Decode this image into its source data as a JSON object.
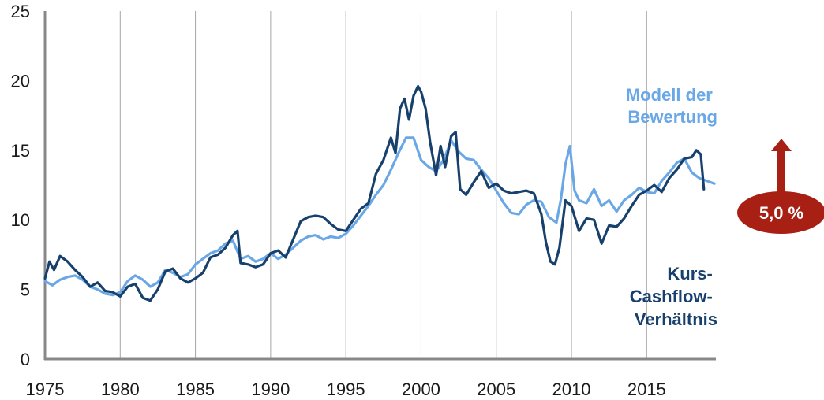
{
  "chart_data": {
    "type": "line",
    "xlim": [
      1975,
      2019.6
    ],
    "ylim": [
      0,
      25
    ],
    "grid": "vertical",
    "x_ticks": [
      {
        "value": 1975,
        "label": "1975"
      },
      {
        "value": 1980,
        "label": "1980"
      },
      {
        "value": 1985,
        "label": "1985"
      },
      {
        "value": 1990,
        "label": "1990"
      },
      {
        "value": 1995,
        "label": "1995"
      },
      {
        "value": 2000,
        "label": "2000"
      },
      {
        "value": 2005,
        "label": "2005"
      },
      {
        "value": 2010,
        "label": "2010"
      },
      {
        "value": 2015,
        "label": "2015"
      }
    ],
    "y_ticks": [
      {
        "value": 0,
        "label": "0"
      },
      {
        "value": 5,
        "label": "5"
      },
      {
        "value": 10,
        "label": "10"
      },
      {
        "value": 15,
        "label": "15"
      },
      {
        "value": 20,
        "label": "20"
      },
      {
        "value": 25,
        "label": "25"
      }
    ],
    "series": [
      {
        "name": "Kurs-Cashflow-Verhältnis",
        "label_lines": [
          "Kurs-",
          "Cashflow-",
          "Verhältnis"
        ],
        "color": "#17406d",
        "x": [
          1975,
          1975.3,
          1975.6,
          1976,
          1976.5,
          1977,
          1977.5,
          1978,
          1978.5,
          1979,
          1979.5,
          1980,
          1980.5,
          1981,
          1981.5,
          1982,
          1982.5,
          1983,
          1983.5,
          1984,
          1984.5,
          1985,
          1985.5,
          1986,
          1986.5,
          1987,
          1987.5,
          1987.8,
          1988,
          1988.5,
          1989,
          1989.5,
          1990,
          1990.5,
          1991,
          1991.5,
          1992,
          1992.5,
          1993,
          1993.5,
          1994,
          1994.5,
          1995,
          1995.5,
          1996,
          1996.5,
          1997,
          1997.5,
          1998,
          1998.3,
          1998.6,
          1998.9,
          1999.2,
          1999.5,
          1999.8,
          2000,
          2000.3,
          2000.6,
          2001,
          2001.3,
          2001.6,
          2002,
          2002.3,
          2002.6,
          2003,
          2003.5,
          2004,
          2004.5,
          2005,
          2005.5,
          2006,
          2006.5,
          2007,
          2007.5,
          2008,
          2008.3,
          2008.6,
          2008.9,
          2009.2,
          2009.6,
          2010,
          2010.5,
          2011,
          2011.5,
          2012,
          2012.5,
          2013,
          2013.5,
          2014,
          2014.5,
          2015,
          2015.5,
          2016,
          2016.5,
          2017,
          2017.5,
          2018,
          2018.3,
          2018.6,
          2018.8
        ],
        "values": [
          5.8,
          7.0,
          6.4,
          7.4,
          7.0,
          6.4,
          5.9,
          5.2,
          5.5,
          4.9,
          4.8,
          4.5,
          5.2,
          5.4,
          4.4,
          4.2,
          5.0,
          6.3,
          6.5,
          5.8,
          5.5,
          5.8,
          6.2,
          7.3,
          7.5,
          8.0,
          8.9,
          9.2,
          6.9,
          6.8,
          6.6,
          6.8,
          7.6,
          7.8,
          7.3,
          8.6,
          9.9,
          10.2,
          10.3,
          10.2,
          9.7,
          9.3,
          9.2,
          10.0,
          10.8,
          11.2,
          13.3,
          14.3,
          15.9,
          14.8,
          18.0,
          18.7,
          17.2,
          18.9,
          19.6,
          19.2,
          18.0,
          15.6,
          13.2,
          15.3,
          13.8,
          16.0,
          16.3,
          12.2,
          11.8,
          12.7,
          13.5,
          12.3,
          12.6,
          12.1,
          11.9,
          12.0,
          12.1,
          11.9,
          10.4,
          8.4,
          7.0,
          6.8,
          8.0,
          11.4,
          11.0,
          9.2,
          10.1,
          10.0,
          8.3,
          9.6,
          9.5,
          10.1,
          11.0,
          11.8,
          12.1,
          12.5,
          12.0,
          13.0,
          13.6,
          14.4,
          14.5,
          15.0,
          14.7,
          12.2
        ]
      },
      {
        "name": "Modell der Bewertung",
        "label_lines": [
          "Modell der",
          "Bewertung"
        ],
        "color": "#6aa7e6",
        "x": [
          1975,
          1975.5,
          1976,
          1976.5,
          1977,
          1977.5,
          1978,
          1978.5,
          1979,
          1979.5,
          1980,
          1980.5,
          1981,
          1981.5,
          1982,
          1982.5,
          1983,
          1983.5,
          1984,
          1984.5,
          1985,
          1985.5,
          1986,
          1986.5,
          1987,
          1987.5,
          1988,
          1988.5,
          1989,
          1989.5,
          1990,
          1990.5,
          1991,
          1991.5,
          1992,
          1992.5,
          1993,
          1993.5,
          1994,
          1994.5,
          1995,
          1995.5,
          1996,
          1996.5,
          1997,
          1997.5,
          1998,
          1998.5,
          1999,
          1999.5,
          2000,
          2000.5,
          2001,
          2001.5,
          2002,
          2002.5,
          2003,
          2003.5,
          2004,
          2004.5,
          2005,
          2005.5,
          2006,
          2006.5,
          2007,
          2007.5,
          2008,
          2008.5,
          2009,
          2009.3,
          2009.6,
          2009.9,
          2010.2,
          2010.5,
          2011,
          2011.5,
          2012,
          2012.5,
          2013,
          2013.5,
          2014,
          2014.5,
          2015,
          2015.5,
          2016,
          2016.5,
          2017,
          2017.5,
          2018,
          2018.5,
          2019,
          2019.5
        ],
        "values": [
          5.6,
          5.3,
          5.7,
          5.9,
          6.0,
          5.7,
          5.2,
          5.0,
          4.7,
          4.6,
          4.8,
          5.6,
          6.0,
          5.7,
          5.2,
          5.5,
          6.4,
          6.2,
          5.9,
          6.1,
          6.8,
          7.2,
          7.6,
          7.8,
          8.3,
          8.5,
          7.2,
          7.4,
          7.0,
          7.2,
          7.6,
          7.2,
          7.5,
          8.0,
          8.5,
          8.8,
          8.9,
          8.6,
          8.8,
          8.7,
          9.0,
          9.6,
          10.3,
          11.0,
          11.8,
          12.5,
          13.6,
          14.8,
          15.9,
          15.9,
          14.3,
          13.8,
          13.5,
          14.3,
          15.7,
          14.9,
          14.4,
          14.3,
          13.6,
          13.0,
          12.1,
          11.2,
          10.5,
          10.4,
          11.1,
          11.4,
          11.3,
          10.2,
          9.8,
          11.5,
          14.0,
          15.3,
          12.1,
          11.4,
          11.2,
          12.2,
          11.0,
          11.4,
          10.6,
          11.4,
          11.8,
          12.3,
          12.0,
          11.9,
          12.8,
          13.4,
          14.1,
          14.4,
          13.4,
          13.0,
          12.8,
          12.6
        ]
      }
    ],
    "annotation": {
      "text": "5,0 %",
      "direction": "up",
      "color": "#a82014"
    }
  }
}
